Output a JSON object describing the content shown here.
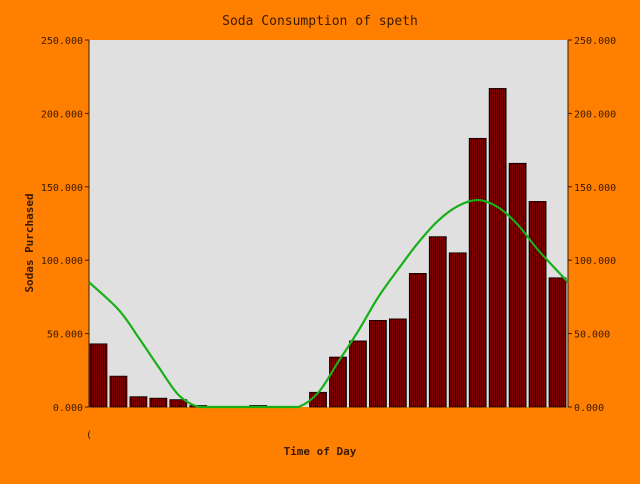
{
  "chart_data": {
    "type": "bar",
    "title": "Soda Consumption of speth",
    "xlabel": "Time of Day",
    "ylabel": "Sodas Purchased",
    "x_tick_label": "(",
    "ylim": [
      0,
      250
    ],
    "y_ticks": [
      "0.000",
      "50.000",
      "100.000",
      "150.000",
      "200.000",
      "250.000"
    ],
    "y_tick_values": [
      0,
      50,
      100,
      150,
      200,
      250
    ],
    "secondary_y_axis": true,
    "bar_count": 24,
    "values": [
      43,
      21,
      7,
      6,
      5,
      1,
      0,
      0,
      1,
      0,
      0,
      10,
      34,
      45,
      59,
      60,
      91,
      116,
      105,
      183,
      217,
      166,
      140,
      88
    ],
    "trend_line": {
      "type": "fitted curve",
      "values": [
        85,
        66,
        47,
        27,
        8,
        0,
        0,
        0,
        0,
        0,
        0,
        10,
        31,
        52,
        75,
        94,
        112,
        127,
        137,
        141,
        136,
        124,
        107,
        85
      ]
    },
    "grid": false,
    "colors": {
      "background": "#ff8000",
      "plot_area": "#e0e0e0",
      "bar_fill": "#800000",
      "bar_hatch": "#2a0000",
      "trend_line": "#18b018",
      "text": "#3a1a00"
    }
  }
}
